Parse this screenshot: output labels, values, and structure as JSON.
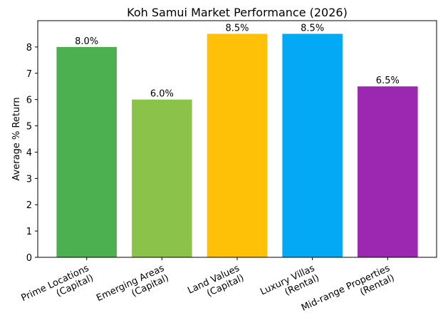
{
  "chart_data": {
    "type": "bar",
    "title": "Koh Samui Market Performance (2026)",
    "y_label": "Average % Return",
    "categories": [
      "Prime Locations\n(Capital)",
      "Emerging Areas\n(Capital)",
      "Land Values\n(Capital)",
      "Luxury Villas\n(Rental)",
      "Mid-range Properties\n(Rental)"
    ],
    "values": [
      8.0,
      6.0,
      8.5,
      8.5,
      6.5
    ],
    "value_labels": [
      "8.0%",
      "6.0%",
      "8.5%",
      "8.5%",
      "6.5%"
    ],
    "colors": [
      "#4caf50",
      "#8bc34a",
      "#ffc107",
      "#03a9f4",
      "#9c27b0"
    ],
    "ylim": [
      0,
      9
    ],
    "yticks": [
      0,
      1,
      2,
      3,
      4,
      5,
      6,
      7,
      8
    ],
    "grid": false
  }
}
